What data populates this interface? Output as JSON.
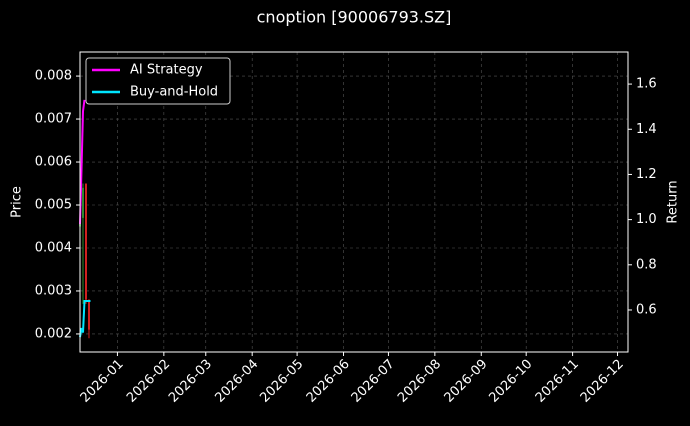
{
  "chart_data": {
    "type": "line",
    "title": "cnoption [90006793.SZ]",
    "y_label": "Price",
    "y2_label": "Return",
    "xlim": [
      "2025-12-07",
      "2026-12-08"
    ],
    "xticks": [
      "2026-01",
      "2026-02",
      "2026-03",
      "2026-04",
      "2026-05",
      "2026-06",
      "2026-07",
      "2026-08",
      "2026-09",
      "2026-10",
      "2026-11",
      "2026-12"
    ],
    "ylim": [
      0.00158,
      0.00856
    ],
    "yticks": [
      0.002,
      0.003,
      0.004,
      0.005,
      0.006,
      0.007,
      0.008
    ],
    "y2lim": [
      0.414,
      1.742
    ],
    "y2ticks": [
      0.6,
      0.8,
      {
        "value": 1,
        "label": "1.0"
      },
      1.2,
      1.4,
      1.6
    ],
    "grid": true,
    "legend": "upper left",
    "candles": {
      "x": [
        "2025-12-07",
        "2025-12-09",
        "2025-12-11",
        "2025-12-13"
      ],
      "open": [
        0.0045,
        0.0047,
        0.0055,
        0.0028
      ],
      "high": [
        0.0046,
        0.0055,
        0.0055,
        0.0028
      ],
      "low": [
        0.0044,
        0.0027,
        0.0027,
        0.0019
      ],
      "close": [
        0.0046,
        0.0054,
        0.0028,
        0.0021
      ],
      "up_color": "#2e8b2e",
      "down_color": "#d02020"
    },
    "series": [
      {
        "name": "AI Strategy",
        "color": "#ff00ff",
        "axis": "y2",
        "x": [
          "2025-12-07",
          "2025-12-08",
          "2025-12-09",
          "2025-12-10"
        ],
        "values": [
          0.98,
          1.22,
          1.48,
          1.53
        ]
      },
      {
        "name": "Buy-and-Hold",
        "color": "#00e5ff",
        "axis": "y2",
        "x": [
          "2025-12-07",
          "2025-12-08",
          "2025-12-09",
          "2025-12-10",
          "2025-12-12",
          "2025-12-14"
        ],
        "values": [
          0.48,
          0.52,
          0.5,
          0.64,
          0.64,
          0.64
        ]
      }
    ]
  }
}
